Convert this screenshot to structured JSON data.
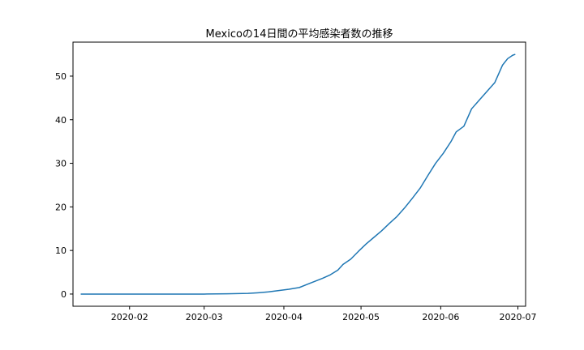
{
  "chart_data": {
    "type": "line",
    "title": "Mexicoの14日間の平均感染者数の推移",
    "xlabel": "",
    "ylabel": "",
    "x_range": [
      "2020-01-10",
      "2020-07-04"
    ],
    "ylim": [
      -2.8,
      57.8
    ],
    "grid": false,
    "x_ticks": [
      "2020-02-01",
      "2020-03-01",
      "2020-04-01",
      "2020-05-01",
      "2020-06-01",
      "2020-07-01"
    ],
    "x_tick_labels": [
      "2020-02",
      "2020-03",
      "2020-04",
      "2020-05",
      "2020-06",
      "2020-07"
    ],
    "y_ticks": [
      0,
      10,
      20,
      30,
      40,
      50
    ],
    "y_tick_labels": [
      "0",
      "10",
      "20",
      "30",
      "40",
      "50"
    ],
    "line_color": "#1f77b4",
    "series": [
      {
        "x": [
          "2020-01-13",
          "2020-02-01",
          "2020-03-01",
          "2020-03-10",
          "2020-03-18",
          "2020-03-22",
          "2020-03-26",
          "2020-03-30",
          "2020-04-03",
          "2020-04-07",
          "2020-04-10",
          "2020-04-13",
          "2020-04-16",
          "2020-04-19",
          "2020-04-22",
          "2020-04-24",
          "2020-04-27",
          "2020-04-30",
          "2020-05-03",
          "2020-05-06",
          "2020-05-09",
          "2020-05-12",
          "2020-05-15",
          "2020-05-18",
          "2020-05-21",
          "2020-05-24",
          "2020-05-27",
          "2020-05-30",
          "2020-06-02",
          "2020-06-05",
          "2020-06-07",
          "2020-06-10",
          "2020-06-13",
          "2020-06-16",
          "2020-06-19",
          "2020-06-22",
          "2020-06-25",
          "2020-06-27",
          "2020-06-29",
          "2020-06-30"
        ],
        "values": [
          0,
          0,
          0,
          0.05,
          0.15,
          0.3,
          0.5,
          0.8,
          1.1,
          1.5,
          2.2,
          2.9,
          3.6,
          4.4,
          5.5,
          6.8,
          8.0,
          9.8,
          11.5,
          13.0,
          14.5,
          16.2,
          17.8,
          19.8,
          22.0,
          24.3,
          27.2,
          30.0,
          32.3,
          35.0,
          37.2,
          38.5,
          42.5,
          44.5,
          46.5,
          48.5,
          52.5,
          54.0,
          54.8,
          55.0
        ]
      }
    ]
  }
}
